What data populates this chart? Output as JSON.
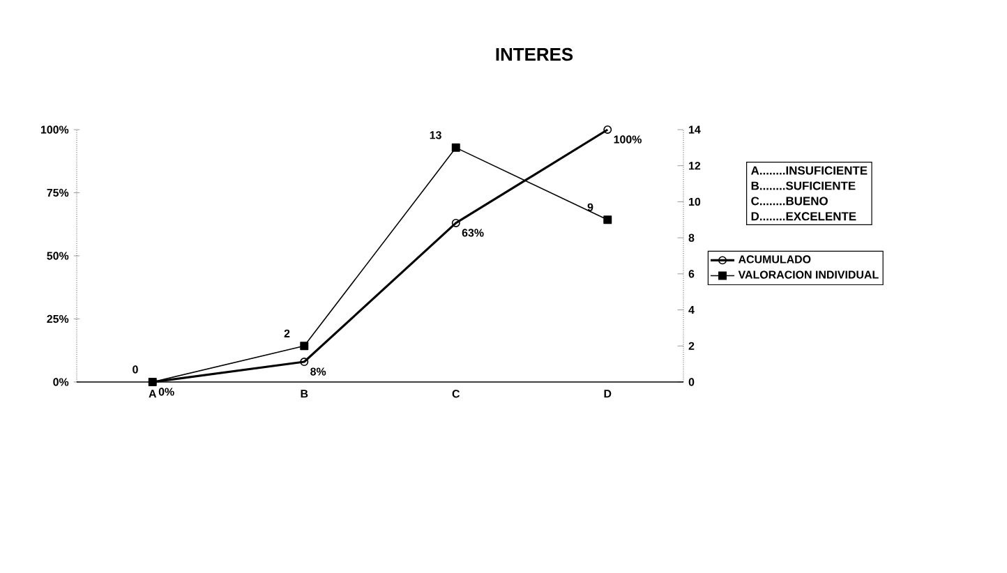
{
  "chart_data": {
    "type": "line",
    "title": "INTERES",
    "categories": [
      "A",
      "B",
      "C",
      "D"
    ],
    "series": [
      {
        "name": "ACUMULADO",
        "color": "#000000",
        "values": [
          0,
          8,
          63,
          100
        ],
        "marker": "circle",
        "value_labels": [
          "0%",
          "8%",
          "63%",
          "100%"
        ]
      },
      {
        "name": "VALORACION INDIVIDUAL",
        "color": "#000000",
        "values": [
          0,
          2,
          13,
          9
        ],
        "axis": "y2",
        "marker": "square",
        "value_labels": [
          "0",
          "2",
          "13",
          "9"
        ]
      }
    ],
    "ylim": [
      0,
      100
    ],
    "yticks": [
      {
        "value": 0,
        "label": "0%"
      },
      {
        "value": 25,
        "label": "25%"
      },
      {
        "value": 50,
        "label": "50%"
      },
      {
        "value": 75,
        "label": "75%"
      },
      {
        "value": 100,
        "label": "100%"
      }
    ],
    "y2lim": [
      0,
      14
    ],
    "y2ticks": [
      0,
      2,
      4,
      6,
      8,
      10,
      12,
      14
    ],
    "legend": "right",
    "annotations": [
      "A........INSUFICIENTE",
      "B........SUFICIENTE",
      "C........BUENO",
      "D........EXCELENTE"
    ]
  }
}
